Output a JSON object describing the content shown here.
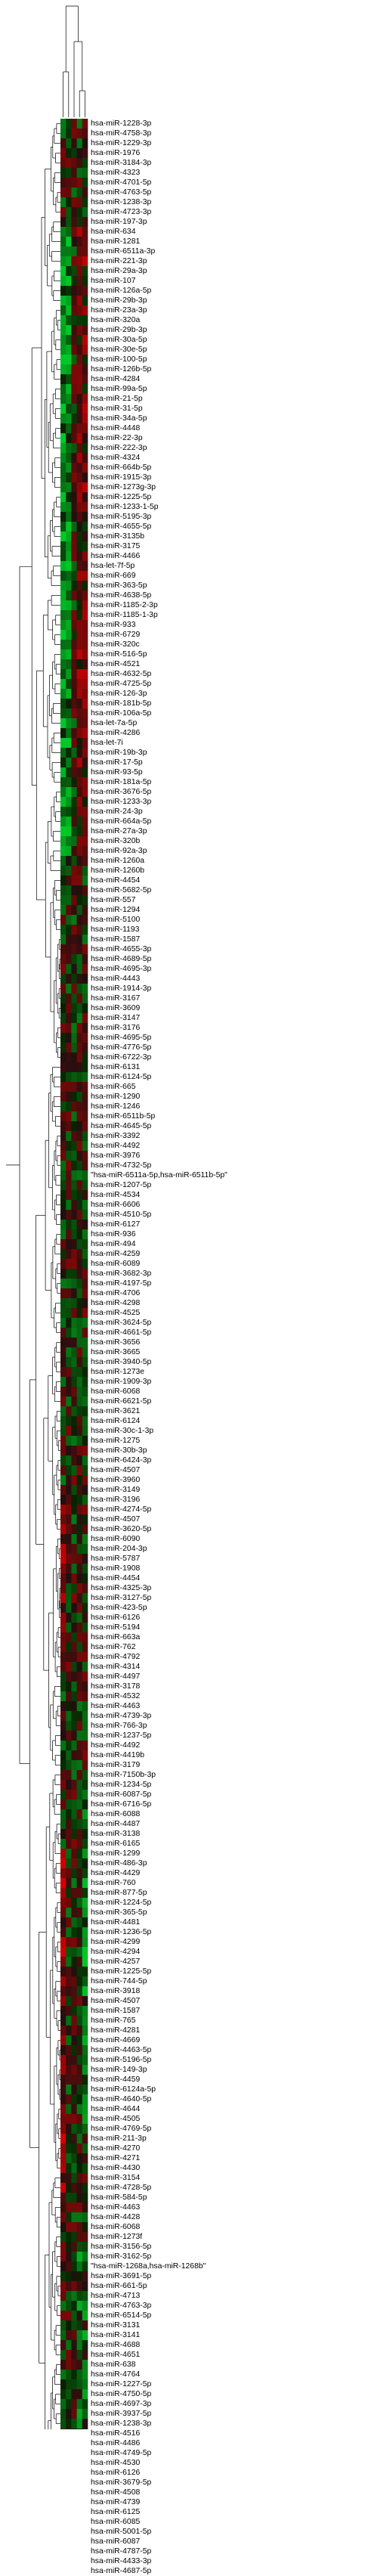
{
  "figure": {
    "type": "clustered-heatmap",
    "colors": {
      "high": "#22c040",
      "mid": "#000000",
      "low": "#d01818",
      "dendrogram": "#000000"
    },
    "columns": 5,
    "row_labels": [
      "hsa-miR-1228-3p",
      "hsa-miR-4758-3p",
      "hsa-miR-1229-3p",
      "hsa-miR-1976",
      "hsa-miR-3184-3p",
      "hsa-miR-4323",
      "hsa-miR-4701-5p",
      "hsa-miR-4763-5p",
      "hsa-miR-1238-3p",
      "hsa-miR-4723-3p",
      "hsa-miR-197-3p",
      "hsa-miR-634",
      "hsa-miR-1281",
      "hsa-miR-6511a-3p",
      "hsa-miR-221-3p",
      "hsa-miR-29a-3p",
      "hsa-miR-107",
      "hsa-miR-126a-5p",
      "hsa-miR-29b-3p",
      "hsa-miR-23a-3p",
      "hsa-miR-320a",
      "hsa-miR-29b-3p",
      "hsa-miR-30a-5p",
      "hsa-miR-30e-5p",
      "hsa-miR-100-5p",
      "hsa-miR-126b-5p",
      "hsa-miR-4284",
      "hsa-miR-99a-5p",
      "hsa-miR-21-5p",
      "hsa-miR-31-5p",
      "hsa-miR-34a-5p",
      "hsa-miR-4448",
      "hsa-miR-22-3p",
      "hsa-miR-222-3p",
      "hsa-miR-4324",
      "hsa-miR-664b-5p",
      "hsa-miR-1915-3p",
      "hsa-miR-1273g-3p",
      "hsa-miR-1225-5p",
      "hsa-miR-1233-1-5p",
      "hsa-miR-5195-3p",
      "hsa-miR-4655-5p",
      "hsa-miR-3135b",
      "hsa-miR-3175",
      "hsa-miR-4466",
      "hsa-let-7f-5p",
      "hsa-miR-669",
      "hsa-miR-363-5p",
      "hsa-miR-4638-5p",
      "hsa-miR-1185-2-3p",
      "hsa-miR-1185-1-3p",
      "hsa-miR-933",
      "hsa-miR-6729",
      "hsa-miR-320c",
      "hsa-miR-516-5p",
      "hsa-miR-4521",
      "hsa-miR-4632-5p",
      "hsa-miR-4725-5p",
      "hsa-miR-126-3p",
      "hsa-miR-181b-5p",
      "hsa-miR-106a-5p",
      "hsa-let-7a-5p",
      "hsa-miR-4286",
      "hsa-let-7i",
      "hsa-miR-19b-3p",
      "hsa-miR-17-5p",
      "hsa-miR-93-5p",
      "hsa-miR-181a-5p",
      "hsa-miR-3676-5p",
      "hsa-miR-1233-3p",
      "hsa-miR-24-3p",
      "hsa-miR-664a-5p",
      "hsa-miR-27a-3p",
      "hsa-miR-320b",
      "hsa-miR-92a-3p",
      "hsa-miR-1260a",
      "hsa-miR-1260b",
      "hsa-miR-4454",
      "hsa-miR-5682-5p",
      "hsa-miR-557",
      "hsa-miR-1294",
      "hsa-miR-5100",
      "hsa-miR-1193",
      "hsa-miR-1587",
      "hsa-miR-4655-3p",
      "hsa-miR-4689-5p",
      "hsa-miR-4695-3p",
      "hsa-miR-4443",
      "hsa-miR-1914-3p",
      "hsa-miR-3167",
      "hsa-miR-3609",
      "hsa-miR-3147",
      "hsa-miR-3176",
      "hsa-miR-4695-5p",
      "hsa-miR-4776-5p",
      "hsa-miR-6722-3p",
      "hsa-miR-6131",
      "hsa-miR-6124-5p",
      "hsa-miR-665",
      "hsa-miR-1290",
      "hsa-miR-1246",
      "hsa-miR-6511b-5p",
      "hsa-miR-4645-5p",
      "hsa-miR-3392",
      "hsa-miR-4492",
      "hsa-miR-3976",
      "hsa-miR-4732-5p",
      "\"hsa-miR-6511a-5p,hsa-miR-6511b-5p\"",
      "hsa-miR-1207-5p",
      "hsa-miR-4534",
      "hsa-miR-6606",
      "hsa-miR-4510-5p",
      "hsa-miR-6127",
      "hsa-miR-936",
      "hsa-miR-494",
      "hsa-miR-4259",
      "hsa-miR-6089",
      "hsa-miR-3682-3p",
      "hsa-miR-4197-5p",
      "hsa-miR-4706",
      "hsa-miR-4298",
      "hsa-miR-4525",
      "hsa-miR-3624-5p",
      "hsa-miR-4661-5p",
      "hsa-miR-3656",
      "hsa-miR-3665",
      "hsa-miR-3940-5p",
      "hsa-miR-1273e",
      "hsa-miR-1909-3p",
      "hsa-miR-6068",
      "hsa-miR-6621-5p",
      "hsa-miR-3621",
      "hsa-miR-6124",
      "hsa-miR-30c-1-3p",
      "hsa-miR-1275",
      "hsa-miR-30b-3p",
      "hsa-miR-6424-3p",
      "hsa-miR-4507",
      "hsa-miR-3960",
      "hsa-miR-3149",
      "hsa-miR-3196",
      "hsa-miR-4274-5p",
      "hsa-miR-4507",
      "hsa-miR-3620-5p",
      "hsa-miR-6090",
      "hsa-miR-204-3p",
      "hsa-miR-5787",
      "hsa-miR-1908",
      "hsa-miR-4454",
      "hsa-miR-4325-3p",
      "hsa-miR-3127-5p",
      "hsa-miR-423-5p",
      "hsa-miR-6126",
      "hsa-miR-5194",
      "hsa-miR-663a",
      "hsa-miR-762",
      "hsa-miR-4792",
      "hsa-miR-4314",
      "hsa-miR-4497",
      "hsa-miR-3178",
      "hsa-miR-4532",
      "hsa-miR-4463",
      "hsa-miR-4739-3p",
      "hsa-miR-766-3p",
      "hsa-miR-1237-5p",
      "hsa-miR-4492",
      "hsa-miR-4419b",
      "hsa-miR-3179",
      "hsa-miR-7150b-3p",
      "hsa-miR-1234-5p",
      "hsa-miR-6087-5p",
      "hsa-miR-6716-5p",
      "hsa-miR-6088",
      "hsa-miR-4487",
      "hsa-miR-3138",
      "hsa-miR-6165",
      "hsa-miR-1299",
      "hsa-miR-486-3p",
      "hsa-miR-4429",
      "hsa-miR-760",
      "hsa-miR-877-5p",
      "hsa-miR-1224-5p",
      "hsa-miR-365-5p",
      "hsa-miR-4481",
      "hsa-miR-1236-5p",
      "hsa-miR-4299",
      "hsa-miR-4294",
      "hsa-miR-4257",
      "hsa-miR-1225-5p",
      "hsa-miR-744-5p",
      "hsa-miR-3918",
      "hsa-miR-4507",
      "hsa-miR-1587",
      "hsa-miR-765",
      "hsa-miR-4281",
      "hsa-miR-4669",
      "hsa-miR-4463-5p",
      "hsa-miR-5196-5p",
      "hsa-miR-149-3p",
      "hsa-miR-4459",
      "hsa-miR-6124a-5p",
      "hsa-miR-4640-5p",
      "hsa-miR-4644",
      "hsa-miR-4505",
      "hsa-miR-4769-5p",
      "hsa-miR-211-3p",
      "hsa-miR-4270",
      "hsa-miR-4271",
      "hsa-miR-4430",
      "hsa-miR-3154",
      "hsa-miR-4728-5p",
      "hsa-miR-584-5p",
      "hsa-miR-4463",
      "hsa-miR-4428",
      "hsa-miR-6068",
      "hsa-miR-1273f",
      "hsa-miR-3156-5p",
      "hsa-miR-3162-5p",
      "\"hsa-miR-1268a,hsa-miR-1268b\"",
      "hsa-miR-3691-5p",
      "hsa-miR-661-5p",
      "hsa-miR-4713",
      "hsa-miR-4763-3p",
      "hsa-miR-6514-5p",
      "hsa-miR-3131",
      "hsa-miR-3141",
      "hsa-miR-4688",
      "hsa-miR-4651",
      "hsa-miR-638",
      "hsa-miR-4764",
      "hsa-miR-1227-5p",
      "hsa-miR-4750-5p",
      "hsa-miR-4697-3p",
      "hsa-miR-3937-5p",
      "hsa-miR-1238-3p",
      "hsa-miR-4516",
      "hsa-miR-4486",
      "hsa-miR-4749-5p",
      "hsa-miR-4530",
      "hsa-miR-6126",
      "hsa-miR-3679-5p",
      "hsa-miR-4508",
      "hsa-miR-4739",
      "hsa-miR-6125",
      "hsa-miR-6085",
      "hsa-miR-5001-5p",
      "hsa-miR-6087",
      "hsa-miR-4787-5p",
      "hsa-miR-4433-3p",
      "hsa-miR-4687-5p"
    ]
  }
}
